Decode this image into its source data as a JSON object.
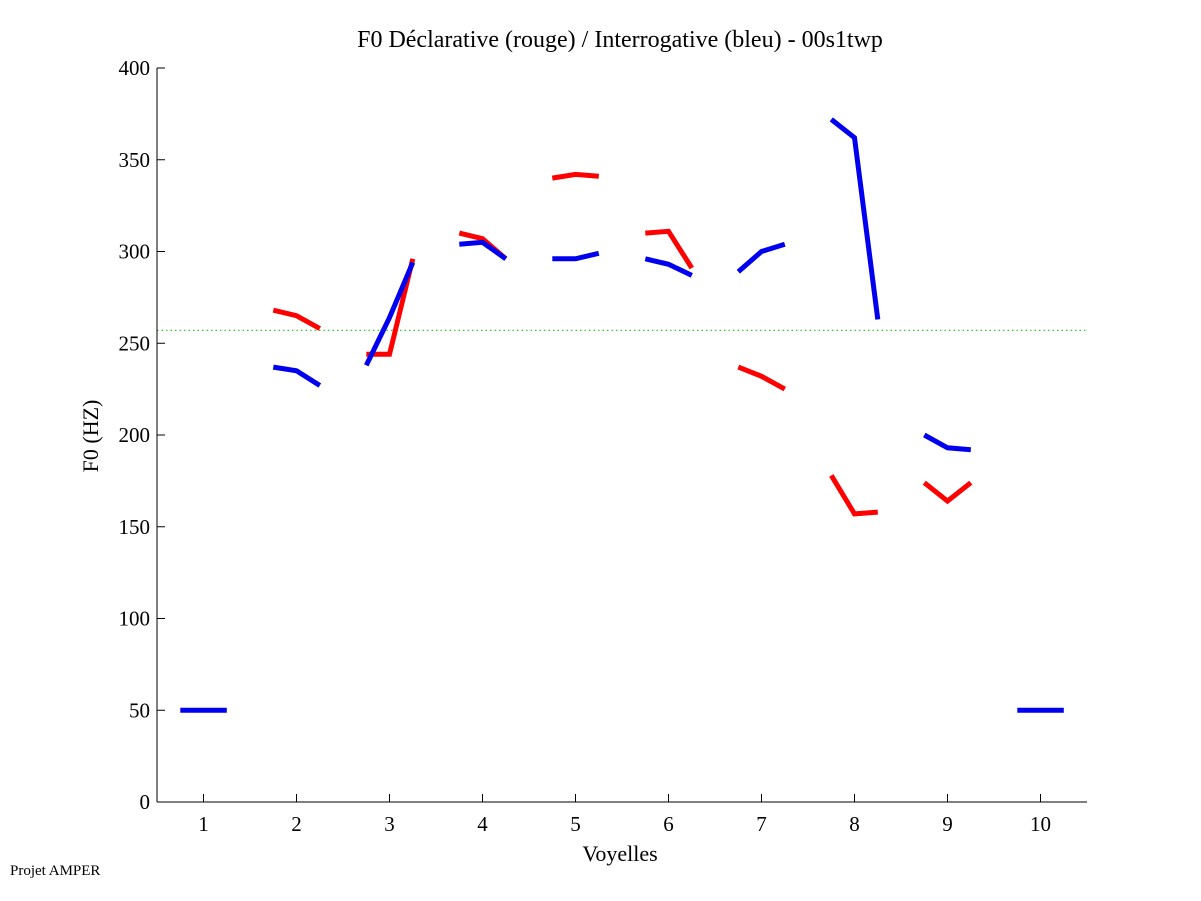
{
  "footer": "Projet AMPER",
  "chart_data": {
    "type": "line",
    "title": "F0 Déclarative (rouge) / Interrogative (bleu) - 00s1twp",
    "xlabel": "Voyelles",
    "ylabel": "F0 (HZ)",
    "xlim": [
      0.5,
      10.5
    ],
    "ylim": [
      0,
      400
    ],
    "xticks": [
      1,
      2,
      3,
      4,
      5,
      6,
      7,
      8,
      9,
      10
    ],
    "yticks": [
      0,
      50,
      100,
      150,
      200,
      250,
      300,
      350,
      400
    ],
    "reference_line": {
      "y": 257,
      "color": "#33cc33",
      "style": "dotted"
    },
    "series": [
      {
        "name": "Déclarative",
        "color": "#ff0000",
        "segments": [
          {
            "vowel": 2,
            "x": [
              1.75,
              2.0,
              2.25
            ],
            "y": [
              268,
              265,
              258
            ]
          },
          {
            "vowel": 3,
            "x": [
              2.75,
              3.0,
              3.25
            ],
            "y": [
              244,
              244,
              296
            ]
          },
          {
            "vowel": 4,
            "x": [
              3.75,
              4.0,
              4.25
            ],
            "y": [
              310,
              307,
              296
            ]
          },
          {
            "vowel": 5,
            "x": [
              4.75,
              5.0,
              5.25
            ],
            "y": [
              340,
              342,
              341
            ]
          },
          {
            "vowel": 6,
            "x": [
              5.75,
              6.0,
              6.25
            ],
            "y": [
              310,
              311,
              291
            ]
          },
          {
            "vowel": 7,
            "x": [
              6.75,
              7.0,
              7.25
            ],
            "y": [
              237,
              232,
              225
            ]
          },
          {
            "vowel": 8,
            "x": [
              7.75,
              8.0,
              8.25
            ],
            "y": [
              178,
              157,
              158
            ]
          },
          {
            "vowel": 9,
            "x": [
              8.75,
              9.0,
              9.25
            ],
            "y": [
              174,
              164,
              174
            ]
          }
        ]
      },
      {
        "name": "Interrogative",
        "color": "#0000ee",
        "segments": [
          {
            "vowel": 1,
            "x": [
              0.75,
              1.0,
              1.25
            ],
            "y": [
              50,
              50,
              50
            ]
          },
          {
            "vowel": 2,
            "x": [
              1.75,
              2.0,
              2.25
            ],
            "y": [
              237,
              235,
              227
            ]
          },
          {
            "vowel": 3,
            "x": [
              2.75,
              3.0,
              3.25
            ],
            "y": [
              238,
              264,
              294
            ]
          },
          {
            "vowel": 4,
            "x": [
              3.75,
              4.0,
              4.25
            ],
            "y": [
              304,
              305,
              296
            ]
          },
          {
            "vowel": 5,
            "x": [
              4.75,
              5.0,
              5.25
            ],
            "y": [
              296,
              296,
              299
            ]
          },
          {
            "vowel": 6,
            "x": [
              5.75,
              6.0,
              6.25
            ],
            "y": [
              296,
              293,
              287
            ]
          },
          {
            "vowel": 7,
            "x": [
              6.75,
              7.0,
              7.25
            ],
            "y": [
              289,
              300,
              304
            ]
          },
          {
            "vowel": 8,
            "x": [
              7.75,
              8.0,
              8.25
            ],
            "y": [
              372,
              362,
              263
            ]
          },
          {
            "vowel": 9,
            "x": [
              8.75,
              9.0,
              9.25
            ],
            "y": [
              200,
              193,
              192
            ]
          },
          {
            "vowel": 10,
            "x": [
              9.75,
              10.0,
              10.25
            ],
            "y": [
              50,
              50,
              50
            ]
          }
        ]
      }
    ]
  }
}
